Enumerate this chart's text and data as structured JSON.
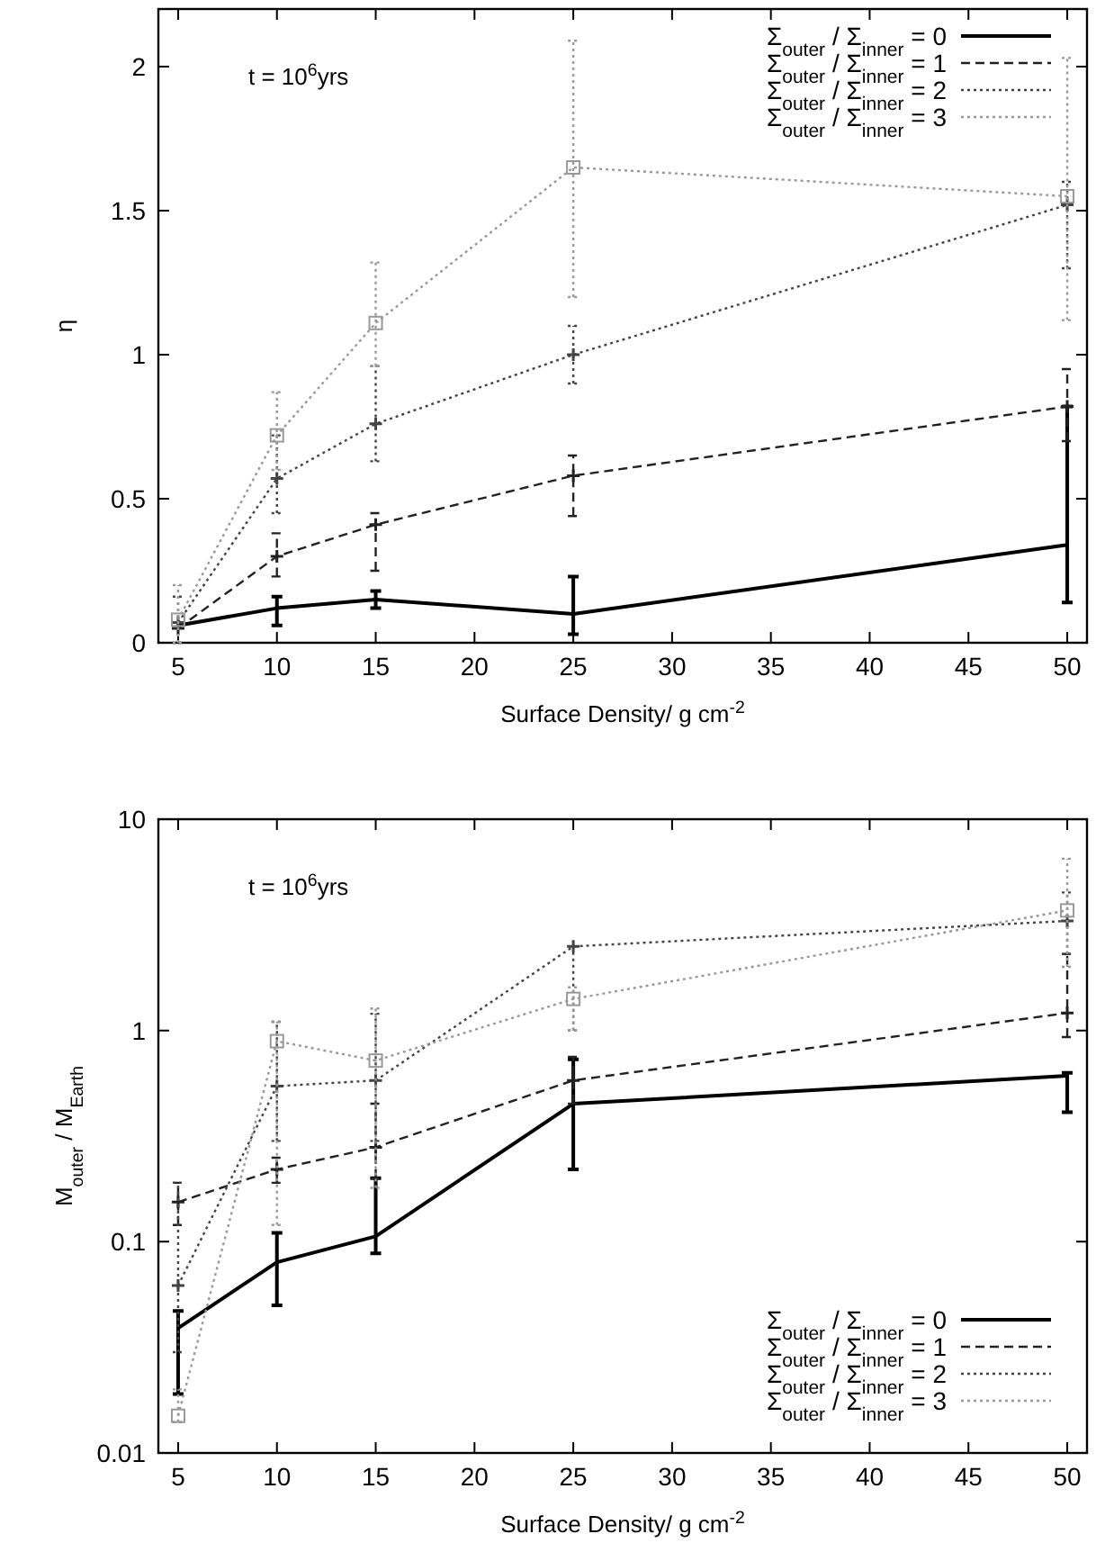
{
  "chart_data": [
    {
      "type": "line",
      "xlabel": "Surface Density/ g cm$^{-2}$",
      "ylabel": "η",
      "annotations": [
        "t = 10$^{6}$yrs"
      ],
      "x": [
        5,
        10,
        15,
        25,
        50
      ],
      "xlim": [
        4,
        51
      ],
      "xticks": [
        5,
        10,
        15,
        20,
        25,
        30,
        35,
        40,
        45,
        50
      ],
      "ylim": [
        0,
        2.2
      ],
      "yticks": [
        0,
        0.5,
        1,
        1.5,
        2
      ],
      "legend": "top right",
      "series": [
        {
          "name": "Σ$_{outer}$ / Σ$_{inner}$ = 0",
          "color": "#000000",
          "line_style": "solid",
          "marker": "none",
          "values": [
            0.06,
            0.12,
            0.15,
            0.1,
            0.34
          ],
          "errors": [
            null,
            [
              0.06,
              0.16
            ],
            [
              0.12,
              0.18
            ],
            [
              0.03,
              0.23
            ],
            [
              0.14,
              0.82
            ]
          ]
        },
        {
          "name": "Σ$_{outer}$ / Σ$_{inner}$ = 1",
          "color": "#222222",
          "line_style": "dashed",
          "marker": "cross",
          "values": [
            0.05,
            0.3,
            0.41,
            0.58,
            0.82
          ],
          "errors": [
            null,
            [
              0.23,
              0.38
            ],
            [
              0.25,
              0.45
            ],
            [
              0.44,
              0.65
            ],
            [
              0.7,
              0.95
            ]
          ]
        },
        {
          "name": "Σ$_{outer}$ / Σ$_{inner}$ = 2",
          "color": "#444444",
          "line_style": "dotted",
          "marker": "cross",
          "values": [
            0.07,
            0.57,
            0.76,
            1.0,
            1.52
          ],
          "errors": [
            [
              0.0,
              0.16
            ],
            [
              0.45,
              0.72
            ],
            [
              0.63,
              0.96
            ],
            [
              0.9,
              1.1
            ],
            [
              1.3,
              1.6
            ]
          ]
        },
        {
          "name": "Σ$_{outer}$ / Σ$_{inner}$ = 3",
          "color": "#999999",
          "line_style": "dotted",
          "marker": "square",
          "values": [
            0.08,
            0.72,
            1.11,
            1.65,
            1.55
          ],
          "errors": [
            [
              0.0,
              0.2
            ],
            [
              0.6,
              0.87
            ],
            [
              0.96,
              1.32
            ],
            [
              1.2,
              2.09
            ],
            [
              1.12,
              2.03
            ]
          ]
        }
      ]
    },
    {
      "type": "line",
      "xlabel": "Surface Density/ g cm$^{-2}$",
      "ylabel": "M$_{outer}$ / M$_{Earth}$",
      "annotations": [
        "t = 10$^{6}$yrs"
      ],
      "x": [
        5,
        10,
        15,
        25,
        50
      ],
      "xlim": [
        4,
        51
      ],
      "xticks": [
        5,
        10,
        15,
        20,
        25,
        30,
        35,
        40,
        45,
        50
      ],
      "log": true,
      "ylim": [
        0.01,
        10
      ],
      "yticks": [
        0.01,
        0.1,
        1,
        10
      ],
      "legend": "bottom right",
      "series": [
        {
          "name": "Σ$_{outer}$ / Σ$_{inner}$ = 0",
          "color": "#000000",
          "line_style": "solid",
          "marker": "none",
          "values": [
            0.039,
            0.08,
            0.106,
            0.45,
            0.61
          ],
          "errors": [
            [
              0.019,
              0.047
            ],
            [
              0.05,
              0.11
            ],
            [
              0.088,
              0.2
            ],
            [
              0.22,
              0.73
            ],
            [
              0.41,
              0.63
            ]
          ]
        },
        {
          "name": "Σ$_{outer}$ / Σ$_{inner}$ = 1",
          "color": "#222222",
          "line_style": "dashed",
          "marker": "cross",
          "values": [
            0.154,
            0.22,
            0.28,
            0.58,
            1.21
          ],
          "errors": [
            [
              0.12,
              0.19
            ],
            [
              0.19,
              0.25
            ],
            [
              0.2,
              0.45
            ],
            [
              0.45,
              0.75
            ],
            [
              0.93,
              2.3
            ]
          ]
        },
        {
          "name": "Σ$_{outer}$ / Σ$_{inner}$ = 2",
          "color": "#444444",
          "line_style": "dotted",
          "marker": "cross",
          "values": [
            0.062,
            0.545,
            0.58,
            2.5,
            3.3
          ],
          "errors": [
            [
              0.03,
              0.19
            ],
            [
              0.3,
              1.1
            ],
            [
              0.3,
              1.2
            ],
            [
              1.0,
              2.5
            ],
            [
              2.3,
              4.5
            ]
          ]
        },
        {
          "name": "Σ$_{outer}$ / Σ$_{inner}$ = 3",
          "color": "#999999",
          "line_style": "dotted",
          "marker": "square",
          "values": [
            0.015,
            0.89,
            0.72,
            1.41,
            3.7
          ],
          "errors": [
            [
              0.014,
              0.02
            ],
            [
              0.12,
              1.1
            ],
            [
              0.18,
              1.27
            ],
            [
              1.0,
              1.6
            ],
            [
              2.0,
              6.5
            ]
          ]
        }
      ]
    }
  ]
}
